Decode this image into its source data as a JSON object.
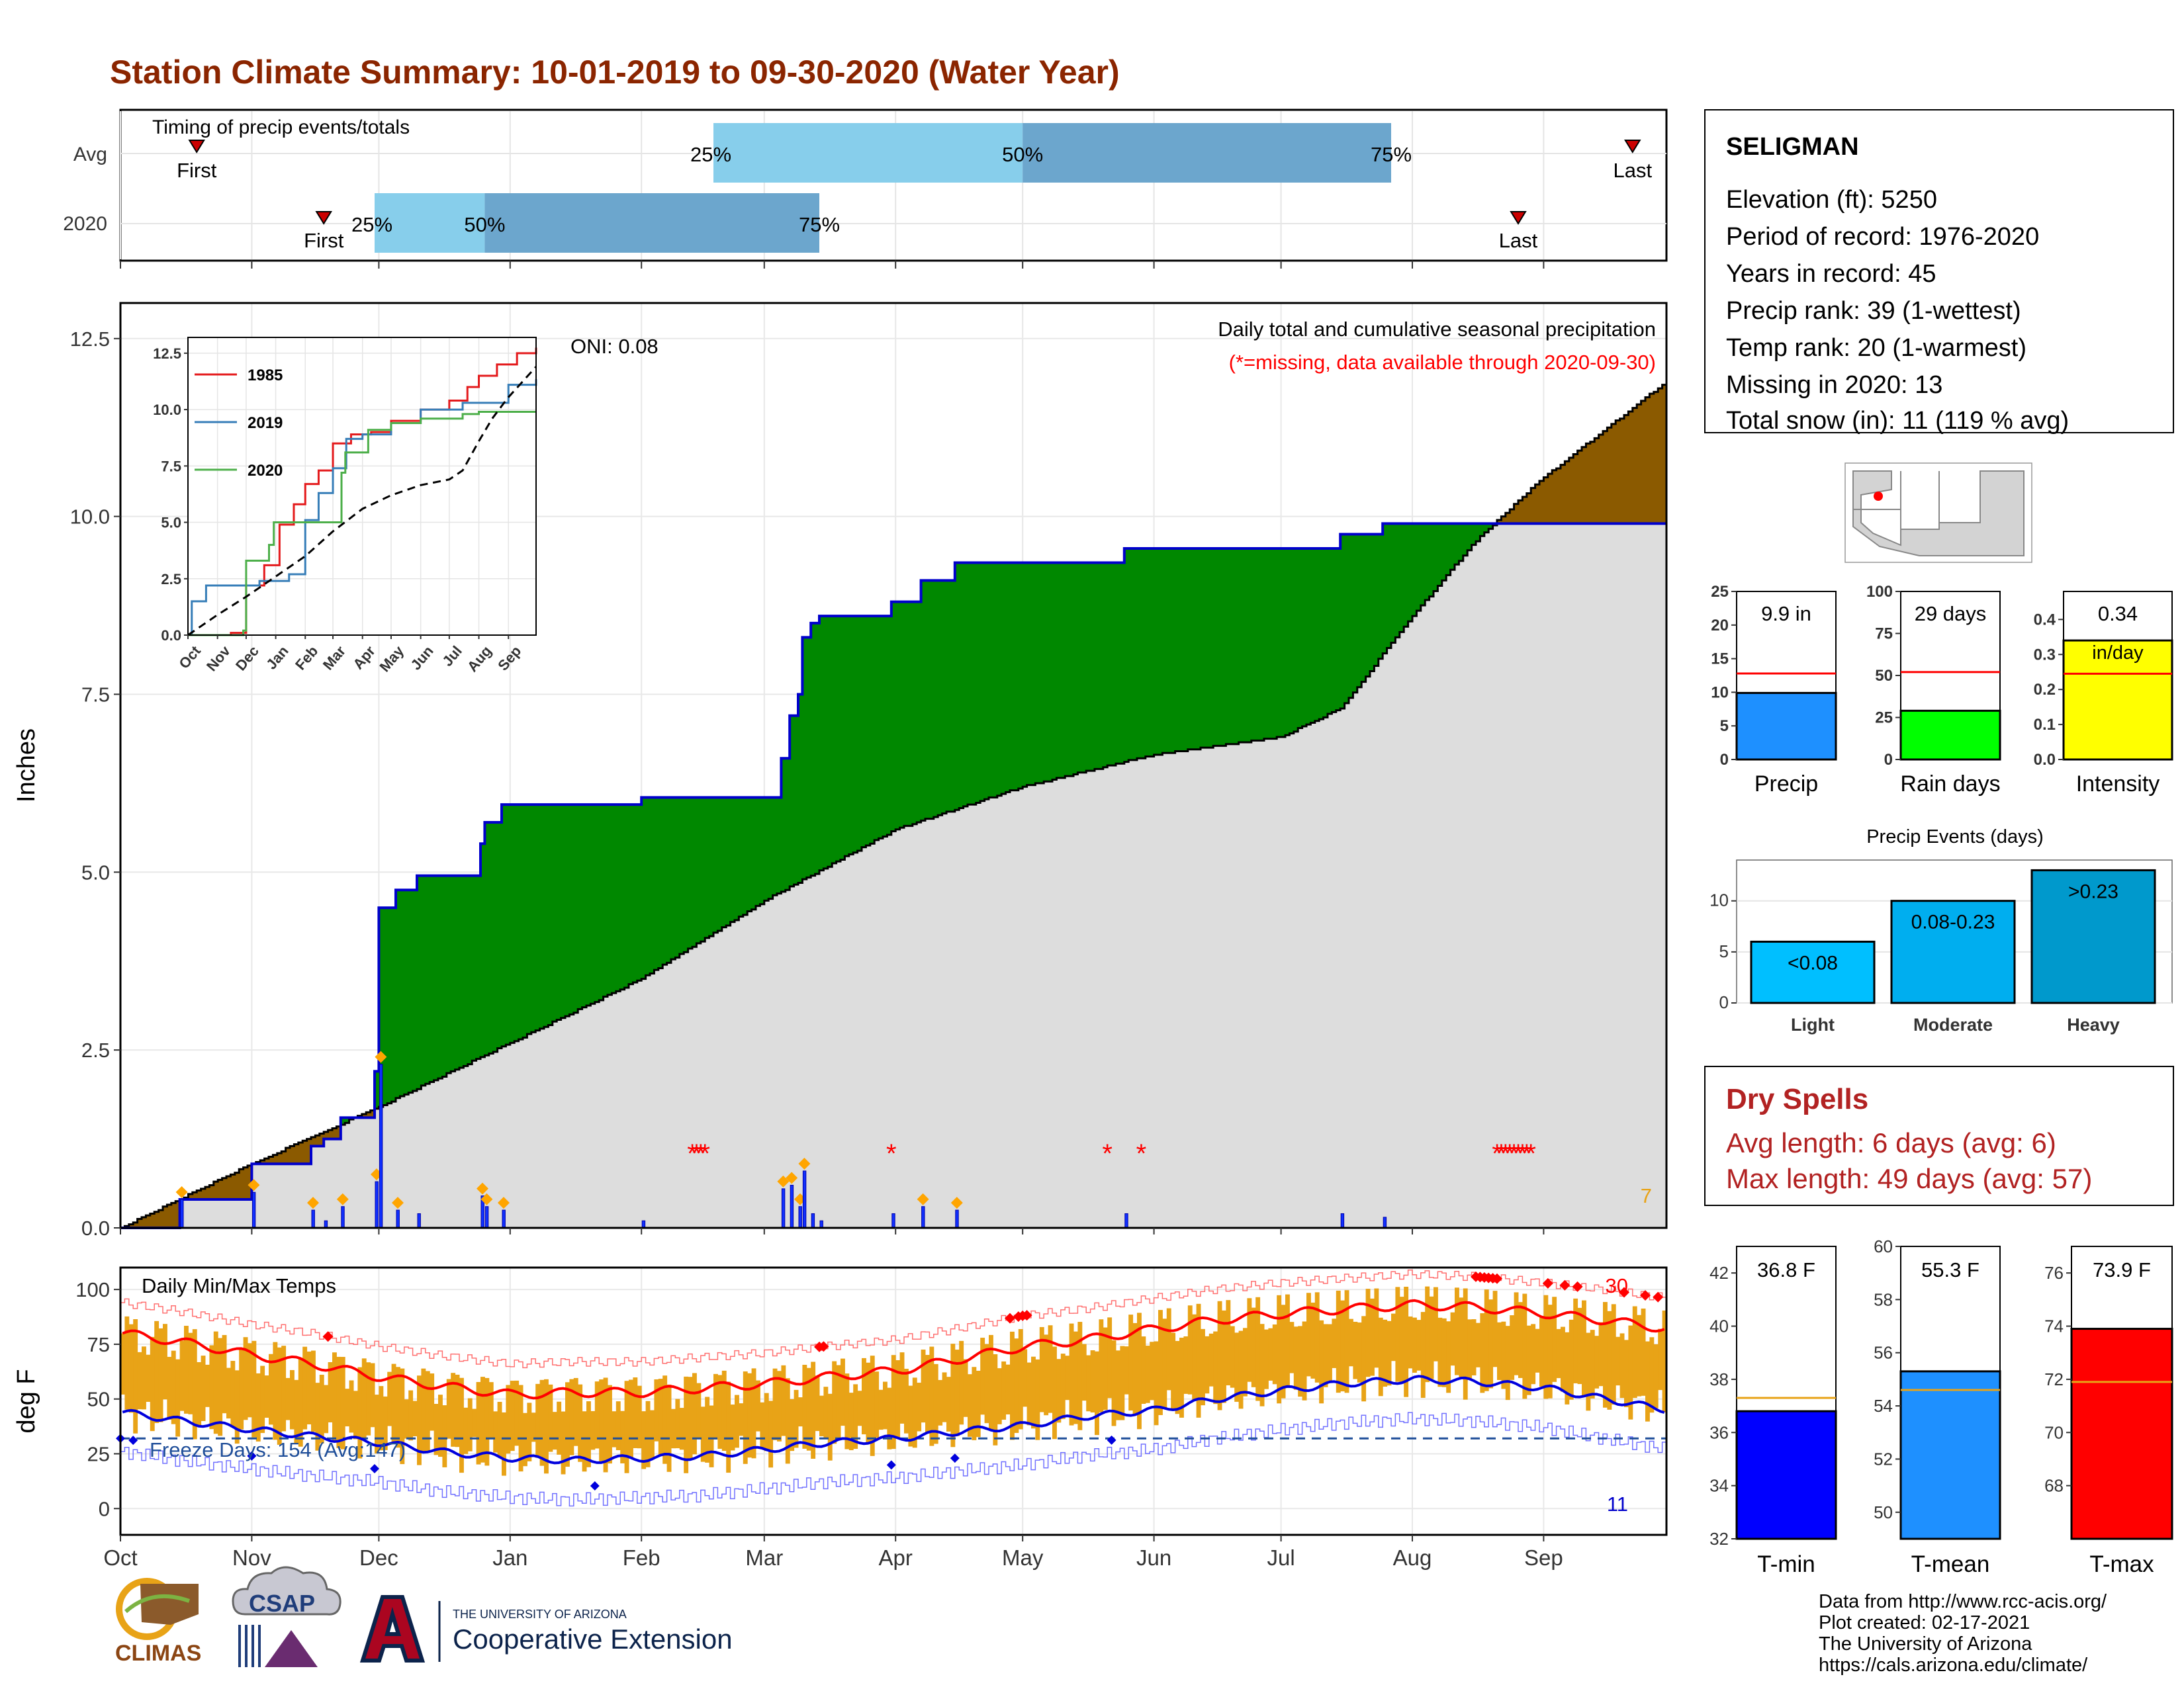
{
  "title": "Station Climate Summary: 10-01-2019 to 09-30-2020 (Water Year)",
  "colors": {
    "title": "#8B2500",
    "brown": "#8B5A00",
    "green": "#008800",
    "blue_line": "#0000CC",
    "gray_fill": "#DDDDDD",
    "light_blue": "#87CEEB",
    "steel_blue": "#6CA6CD",
    "orange": "#E8A317",
    "red": "#FF0000",
    "dry_spell_red": "#B22222"
  },
  "timing": {
    "label": "Timing of precip events/totals",
    "rows": [
      {
        "name": "Avg",
        "first_label": "First",
        "last_label": "Last",
        "p25_label": "25%",
        "p50_label": "50%",
        "p75_label": "75%",
        "first_date": "10-19",
        "last_date": "09-22",
        "p25": "02-18",
        "p50": "05-01",
        "p75": "07-27"
      },
      {
        "name": "2020",
        "first_label": "First",
        "last_label": "Last",
        "p25_label": "25%",
        "p50_label": "50%",
        "p75_label": "75%",
        "first_date": "11-18",
        "last_date": "08-26",
        "p25": "11-30",
        "p50": "12-26",
        "p75": "03-14"
      }
    ]
  },
  "main_chart": {
    "title": "Daily total and cumulative seasonal precipitation",
    "subtitle": "(*=missing, data available through 2020-09-30)",
    "ylabel": "Inches",
    "oni_label": "ONI: 0.08",
    "yticks": [
      "0.0",
      "2.5",
      "5.0",
      "7.5",
      "10.0",
      "12.5"
    ],
    "ylim": [
      0,
      13
    ],
    "xticks": [
      "Oct",
      "Nov",
      "Dec",
      "Jan",
      "Feb",
      "Mar",
      "Apr",
      "May",
      "Jun",
      "Jul",
      "Aug",
      "Sep"
    ],
    "count_label": "7"
  },
  "inset": {
    "yticks": [
      "0.0",
      "2.5",
      "5.0",
      "7.5",
      "10.0",
      "12.5"
    ],
    "xticks": [
      "Oct",
      "Nov",
      "Dec",
      "Jan",
      "Feb",
      "Mar",
      "Apr",
      "May",
      "Jun",
      "Jul",
      "Aug",
      "Sep"
    ],
    "legend": [
      {
        "name": "1985",
        "color": "#E41A1C"
      },
      {
        "name": "2019",
        "color": "#377EB8"
      },
      {
        "name": "2020",
        "color": "#4DAF4A"
      }
    ]
  },
  "temp_chart": {
    "label": "Daily Min/Max Temps",
    "ylabel": "deg F",
    "yticks": [
      "0",
      "25",
      "50",
      "75",
      "100"
    ],
    "ylim": [
      -12,
      110
    ],
    "freeze_label": "Freeze Days: 154 (Avg:147)",
    "freeze_line": 32,
    "hot_count": "30",
    "cold_count": "11",
    "xticks": [
      "Oct",
      "Nov",
      "Dec",
      "Jan",
      "Feb",
      "Mar",
      "Apr",
      "May",
      "Jun",
      "Jul",
      "Aug",
      "Sep"
    ]
  },
  "info_box": {
    "station": "SELIGMAN",
    "lines": [
      "Elevation (ft): 5250",
      "Period of record: 1976-2020",
      "Years in record: 45",
      "Precip rank: 39 (1-wettest)",
      "Temp rank: 20 (1-warmest)",
      "Missing in 2020: 13",
      "Total snow (in): 11 (119 % avg)"
    ]
  },
  "summary_bars": [
    {
      "label": "Precip",
      "value_label": "9.9 in",
      "value": 9.9,
      "avg": 12.8,
      "ymax": 25,
      "yticks": [
        "0",
        "5",
        "10",
        "15",
        "20",
        "25"
      ],
      "tick_values": [
        0,
        5,
        10,
        15,
        20,
        25
      ],
      "color": "#1E90FF"
    },
    {
      "label": "Rain days",
      "value_label": "29 days",
      "value": 29,
      "avg": 52,
      "ymax": 100,
      "yticks": [
        "0",
        "25",
        "50",
        "75",
        "100"
      ],
      "tick_values": [
        0,
        25,
        50,
        75,
        100
      ],
      "color": "#00FF00"
    },
    {
      "label": "Intensity",
      "value_label": "0.34",
      "unit_label": "in/day",
      "value": 0.34,
      "avg": 0.245,
      "ymax": 0.48,
      "yticks": [
        "0.0",
        "0.1",
        "0.2",
        "0.3",
        "0.4"
      ],
      "tick_values": [
        0,
        0.1,
        0.2,
        0.3,
        0.4
      ],
      "color": "#FFFF00"
    }
  ],
  "precip_events": {
    "title": "Precip Events (days)",
    "yticks": [
      "0",
      "5",
      "10"
    ],
    "tick_values": [
      0,
      5,
      10
    ],
    "ymax": 14,
    "bars": [
      {
        "label": "Light",
        "value_label": "<0.08",
        "value": 6,
        "color": "#00BFFF"
      },
      {
        "label": "Moderate",
        "value_label": "0.08-0.23",
        "value": 10,
        "color": "#00AEEF"
      },
      {
        "label": "Heavy",
        "value_label": ">0.23",
        "value": 13,
        "color": "#0099CC"
      }
    ]
  },
  "dry_spells": {
    "title": "Dry Spells",
    "avg_line": "Avg length: 6 days (avg: 6)",
    "max_line": "Max length: 49 days (avg: 57)"
  },
  "temp_bars": [
    {
      "label": "T-min",
      "value_label": "36.8 F",
      "value": 36.8,
      "avg": 37.3,
      "ymin": 32,
      "ymax": 43,
      "yticks": [
        "32",
        "34",
        "36",
        "38",
        "40",
        "42"
      ],
      "tick_values": [
        32,
        34,
        36,
        38,
        40,
        42
      ],
      "color": "#0000FF"
    },
    {
      "label": "T-mean",
      "value_label": "55.3 F",
      "value": 55.3,
      "avg": 54.6,
      "ymin": 49,
      "ymax": 60,
      "yticks": [
        "50",
        "52",
        "54",
        "56",
        "58",
        "60"
      ],
      "tick_values": [
        50,
        52,
        54,
        56,
        58,
        60
      ],
      "color": "#1E90FF"
    },
    {
      "label": "T-max",
      "value_label": "73.9 F",
      "value": 73.9,
      "avg": 71.9,
      "ymin": 66,
      "ymax": 77,
      "yticks": [
        "68",
        "70",
        "72",
        "74",
        "76"
      ],
      "tick_values": [
        68,
        70,
        72,
        74,
        76
      ],
      "color": "#FF0000"
    }
  ],
  "footer": {
    "lines": [
      "Data from http://www.rcc-acis.org/",
      "Plot created: 02-17-2021",
      "The University of Arizona",
      "https://cals.arizona.edu/climate/"
    ]
  },
  "logos": {
    "climas": "CLIMAS",
    "csap": "CSAP",
    "ua_small": "THE UNIVERSITY OF ARIZONA",
    "coop": "Cooperative Extension"
  },
  "chart_data": [
    {
      "type": "area",
      "title": "Daily total and cumulative seasonal precipitation",
      "ylabel": "Inches",
      "ylim": [
        0,
        13
      ],
      "series": [
        {
          "name": "",
          "x": [
            "10-01",
            "10-15",
            "11-01",
            "11-15",
            "11-18",
            "11-22",
            "11-28",
            "11-30",
            "12-01",
            "12-05",
            "12-10",
            "12-22",
            "12-25",
            "12-26",
            "12-30",
            "01-20",
            "02-01",
            "02-20",
            "03-05",
            "03-07",
            "03-09",
            "03-10",
            "03-12",
            "03-14",
            "03-20",
            "03-31",
            "04-07",
            "04-15",
            "05-01",
            "05-25",
            "06-30",
            "07-15",
            "07-25",
            "08-20",
            "09-30"
          ],
          "values": [
            0,
            0.4,
            0.9,
            1.15,
            1.25,
            1.55,
            1.55,
            2.2,
            4.5,
            4.75,
            4.95,
            4.95,
            5.4,
            5.7,
            5.95,
            5.95,
            6.05,
            6.05,
            6.6,
            7.2,
            7.5,
            8.3,
            8.5,
            8.6,
            8.6,
            8.8,
            9.1,
            9.35,
            9.35,
            9.55,
            9.55,
            9.75,
            9.9,
            9.9,
            9.9
          ]
        },
        {
          "name": "",
          "x": [
            "10-01",
            "11-01",
            "12-01",
            "01-01",
            "02-01",
            "03-01",
            "04-01",
            "05-01",
            "06-01",
            "07-01",
            "07-15",
            "08-01",
            "08-15",
            "08-31",
            "09-30"
          ],
          "values": [
            0,
            0.9,
            1.7,
            2.6,
            3.5,
            4.6,
            5.6,
            6.2,
            6.65,
            6.9,
            7.3,
            8.6,
            9.6,
            10.5,
            11.9
          ]
        }
      ]
    },
    {
      "type": "line",
      "title": "",
      "ylabel": "",
      "ylim": [
        0,
        13
      ],
      "series": [
        {
          "name": "1985",
          "x": [
            "10-01",
            "11-15",
            "12-01",
            "12-20",
            "01-05",
            "01-20",
            "02-01",
            "02-15",
            "03-01",
            "03-20",
            "04-10",
            "05-01",
            "06-01",
            "07-01",
            "07-20",
            "08-01",
            "08-20",
            "09-10",
            "09-30"
          ],
          "values": [
            0,
            0.1,
            2.2,
            3.1,
            4.9,
            5.8,
            6.7,
            7.3,
            8.5,
            8.9,
            9.0,
            9.5,
            10.0,
            10.4,
            11.0,
            11.5,
            12.0,
            12.5,
            12.7
          ]
        },
        {
          "name": "2019",
          "x": [
            "10-01",
            "10-05",
            "10-20",
            "11-15",
            "12-15",
            "01-15",
            "02-01",
            "02-15",
            "03-01",
            "03-15",
            "04-01",
            "05-01",
            "06-01",
            "07-15",
            "08-01",
            "09-01",
            "09-30"
          ],
          "values": [
            0,
            1.5,
            2.2,
            2.2,
            2.4,
            2.7,
            5.1,
            6.3,
            7.4,
            8.7,
            8.9,
            9.4,
            10.0,
            10.3,
            10.3,
            11.1,
            11.3
          ]
        },
        {
          "name": "2020",
          "x": [
            "10-01",
            "11-28",
            "12-01",
            "12-25",
            "12-30",
            "02-01",
            "03-10",
            "03-14",
            "04-07",
            "05-01",
            "06-01",
            "07-15",
            "08-01",
            "08-26",
            "09-30"
          ],
          "values": [
            0,
            0.2,
            3.3,
            4.0,
            5.0,
            5.0,
            7.2,
            8.1,
            9.1,
            9.4,
            9.6,
            9.8,
            9.9,
            9.9,
            9.9
          ]
        },
        {
          "name": "",
          "x": [
            "10-01",
            "11-01",
            "12-01",
            "01-01",
            "02-01",
            "03-01",
            "04-01",
            "05-01",
            "06-01",
            "07-01",
            "07-15",
            "08-01",
            "08-15",
            "08-31",
            "09-30"
          ],
          "values": [
            0,
            0.9,
            1.7,
            2.6,
            3.5,
            4.6,
            5.6,
            6.2,
            6.65,
            6.9,
            7.3,
            8.6,
            9.6,
            10.5,
            11.9
          ]
        }
      ]
    },
    {
      "type": "line",
      "title": "Daily Min/Max Temps",
      "ylabel": "deg F",
      "ylim": [
        -12,
        110
      ],
      "series": [
        {
          "name": "",
          "x": [
            "10-01",
            "10-15",
            "11-01",
            "11-15",
            "12-01",
            "12-15",
            "01-01",
            "01-15",
            "02-01",
            "02-15",
            "03-01",
            "03-15",
            "04-01",
            "04-15",
            "05-01",
            "05-15",
            "06-01",
            "06-15",
            "07-01",
            "07-15",
            "08-01",
            "08-15",
            "09-01",
            "09-15",
            "09-30"
          ],
          "values": [
            80,
            76,
            70,
            66,
            60,
            56,
            52,
            53,
            53,
            55,
            57,
            60,
            63,
            68,
            74,
            77,
            82,
            86,
            89,
            91,
            93,
            92,
            89,
            86,
            82
          ]
        },
        {
          "name": "",
          "x": [
            "10-01",
            "10-15",
            "11-01",
            "11-15",
            "12-01",
            "12-15",
            "01-01",
            "01-15",
            "02-01",
            "02-15",
            "03-01",
            "03-15",
            "04-01",
            "04-15",
            "05-01",
            "05-15",
            "06-01",
            "06-15",
            "07-01",
            "07-15",
            "08-01",
            "08-15",
            "09-01",
            "09-15",
            "09-30"
          ],
          "values": [
            44,
            40,
            36,
            33,
            30,
            26,
            23,
            22,
            23,
            24,
            27,
            30,
            32,
            35,
            38,
            42,
            45,
            50,
            54,
            57,
            59,
            58,
            55,
            50,
            45
          ]
        }
      ]
    },
    {
      "type": "bar",
      "title": "",
      "categories": [
        "Precip",
        "Rain days",
        "Intensity"
      ],
      "series": [
        {
          "name": "",
          "values": [
            9.9,
            29,
            0.34
          ]
        },
        {
          "name": "",
          "values": [
            12.8,
            52,
            0.245
          ]
        }
      ]
    },
    {
      "type": "bar",
      "title": "Precip Events (days)",
      "categories": [
        "Light",
        "Moderate",
        "Heavy"
      ],
      "values": [
        6,
        10,
        13
      ],
      "ylim": [
        0,
        14
      ]
    },
    {
      "type": "bar",
      "title": "",
      "categories": [
        "T-min",
        "T-mean",
        "T-max"
      ],
      "series": [
        {
          "name": "",
          "values": [
            36.8,
            55.3,
            73.9
          ]
        },
        {
          "name": "",
          "values": [
            37.3,
            54.6,
            71.9
          ]
        }
      ]
    }
  ]
}
